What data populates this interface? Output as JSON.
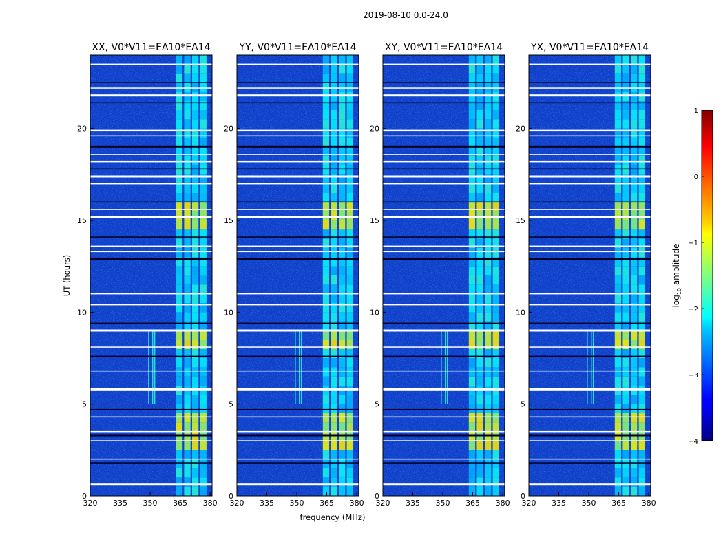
{
  "chart_data": {
    "type": "heatmap",
    "suptitle": "2019-08-10 0.0-24.0",
    "xlabel": "frequency (MHz)",
    "ylabel": "UT (hours)",
    "xlim": [
      320,
      381
    ],
    "ylim": [
      0,
      24
    ],
    "xticks": [
      320,
      335,
      350,
      365,
      380
    ],
    "yticks": [
      0,
      5,
      10,
      15,
      20
    ],
    "panels": [
      {
        "title": "XX, V0*V11=EA10*EA14"
      },
      {
        "title": "YY, V0*V11=EA10*EA14"
      },
      {
        "title": "XY, V0*V11=EA10*EA14"
      },
      {
        "title": "YX, V0*V11=EA10*EA14"
      }
    ],
    "colorbar": {
      "label": "log10 amplitude",
      "label_base": "log",
      "label_sub": "10",
      "label_rest": " amplitude",
      "range": [
        -4,
        1
      ],
      "ticks": [
        1,
        0,
        -1,
        -2,
        -3,
        -4
      ],
      "tick_labels": [
        "1",
        "0",
        "−1",
        "−2",
        "−3",
        "−4"
      ],
      "colormap": "jet"
    },
    "rfi_band_mhz": [
      363,
      379
    ],
    "strong_emission_hours": [
      [
        2.4,
        4.5
      ],
      [
        7.8,
        9.0
      ],
      [
        14.1,
        15.6
      ]
    ],
    "flagged_hours": [
      0.65,
      1.8,
      2.0,
      3.0,
      3.3,
      3.5,
      4.3,
      4.7,
      5.8,
      6.8,
      7.6,
      8.1,
      9.0,
      9.4,
      10.4,
      11.0,
      12.9,
      13.3,
      13.6,
      14.1,
      15.2,
      15.6,
      16.0,
      17.0,
      17.4,
      17.8,
      18.2,
      18.6,
      19.0,
      19.6,
      19.9,
      21.4,
      21.8,
      22.2,
      22.5,
      23.5
    ],
    "colors": {
      "background": "#0f3ec8",
      "flag_white": "#ffffff",
      "flag_dark": "#000020"
    }
  }
}
